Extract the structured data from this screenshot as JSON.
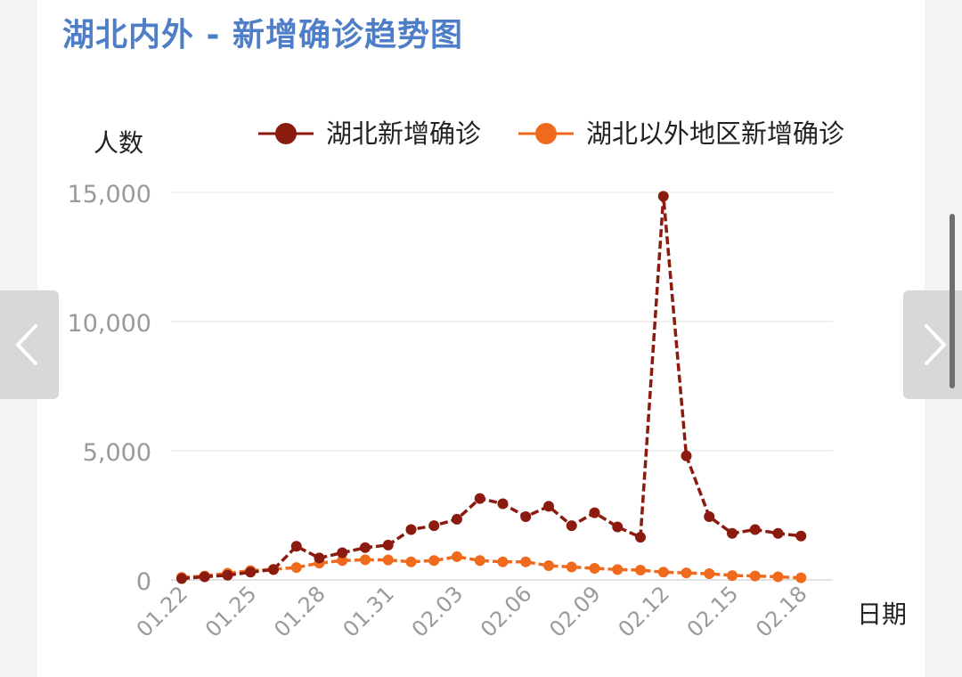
{
  "title": "湖北内外 - 新增确诊趋势图",
  "colors": {
    "title": "#4f7ec8",
    "series_hubei": "#8b1a0f",
    "series_outside": "#f06a1e",
    "axis_text": "#9a9a9a",
    "grid": "#ececec"
  },
  "nav": {
    "prev_icon": "chevron-left-icon",
    "next_icon": "chevron-right-icon"
  },
  "chart_data": {
    "type": "line",
    "ylabel": "人数",
    "xlabel": "日期",
    "ylim": [
      0,
      15000
    ],
    "yticks": [
      0,
      5000,
      10000,
      15000
    ],
    "ytick_labels": [
      "0",
      "5,000",
      "10,000",
      "15,000"
    ],
    "grid": true,
    "legend_position": "top",
    "categories": [
      "01.22",
      "01.23",
      "01.24",
      "01.25",
      "01.26",
      "01.27",
      "01.28",
      "01.29",
      "01.30",
      "01.31",
      "02.01",
      "02.02",
      "02.03",
      "02.04",
      "02.05",
      "02.06",
      "02.07",
      "02.08",
      "02.09",
      "02.10",
      "02.11",
      "02.12",
      "02.13",
      "02.14",
      "02.15",
      "02.16",
      "02.17",
      "02.18",
      "02.19"
    ],
    "xtick_labels": [
      "01.22",
      "01.25",
      "01.28",
      "01.31",
      "02.03",
      "02.06",
      "02.09",
      "02.12",
      "02.15",
      "02.18"
    ],
    "xtick_indices": [
      0,
      3,
      6,
      9,
      12,
      15,
      18,
      21,
      24,
      27
    ],
    "series": [
      {
        "name": "湖北新增确诊",
        "color": "#8b1a0f",
        "values": [
          50,
          120,
          180,
          300,
          400,
          1300,
          850,
          1050,
          1250,
          1350,
          1950,
          2100,
          2350,
          3150,
          2950,
          2450,
          2850,
          2100,
          2600,
          2050,
          1650,
          14850,
          4800,
          2450,
          1800,
          1950,
          1800,
          1700,
          null
        ]
      },
      {
        "name": "湖北以外地区新增确诊",
        "color": "#f06a1e",
        "values": [
          100,
          150,
          260,
          360,
          410,
          480,
          650,
          750,
          780,
          770,
          700,
          750,
          900,
          750,
          700,
          700,
          550,
          500,
          450,
          400,
          380,
          300,
          270,
          240,
          170,
          150,
          120,
          80,
          null
        ]
      }
    ]
  }
}
